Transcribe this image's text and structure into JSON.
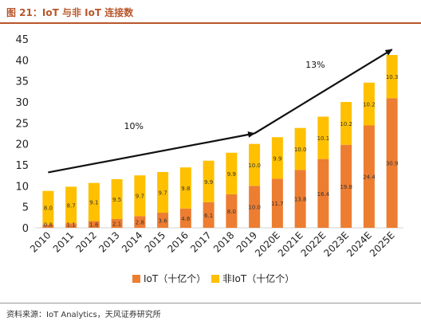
{
  "title": "图 21：IoT 与非 IoT 连接数",
  "source": "资料来源：IoT Analytics，天风证券研究所",
  "chart_data": {
    "type": "bar",
    "stacked": true,
    "categories": [
      "2010",
      "2011",
      "2012",
      "2013",
      "2014",
      "2015",
      "2016",
      "2017",
      "2018",
      "2019",
      "2020E",
      "2021E",
      "2022E",
      "2023E",
      "2024E",
      "2025E"
    ],
    "series": [
      {
        "name": "IoT（十亿个）",
        "color": "#ed7d31",
        "values": [
          0.8,
          1.1,
          1.6,
          2.1,
          2.8,
          3.6,
          4.6,
          6.1,
          8.0,
          10.0,
          11.7,
          13.8,
          16.4,
          19.8,
          24.4,
          30.9
        ],
        "labels": [
          "0.8",
          "1.1",
          "1.6",
          "2.1",
          "2.8",
          "3.6",
          "4.6",
          "6.1",
          "8.0",
          "10.0",
          "11.7",
          "13.8",
          "16.4",
          "19.8",
          "24.4",
          "30.9"
        ]
      },
      {
        "name": "非IoT（十亿个）",
        "color": "#ffc000",
        "values": [
          8.0,
          8.7,
          9.1,
          9.5,
          9.7,
          9.7,
          9.8,
          9.9,
          9.9,
          10.0,
          9.9,
          10.0,
          10.1,
          10.2,
          10.2,
          10.3
        ],
        "labels": [
          "8.0",
          "8.7",
          "9.1",
          "9.5",
          "9.7",
          "9.7",
          "9.8",
          "9.9",
          "9.9",
          "10.0",
          "9.9",
          "10.0",
          "10.1",
          "10.2",
          "10.2",
          "10.3"
        ]
      }
    ],
    "ylim": [
      0,
      45
    ],
    "yticks": [
      0,
      5,
      10,
      15,
      20,
      25,
      30,
      35,
      40,
      45
    ],
    "ytick_labels": [
      "0",
      "5",
      "10",
      "15",
      "20",
      "25",
      "30",
      "35",
      "40",
      "45"
    ],
    "grid": false,
    "legend": "bottom",
    "annotations": [
      {
        "text": "10%",
        "from": {
          "x": "2010",
          "y": 13.2
        },
        "to": {
          "x": "2019",
          "y": 22.5
        }
      },
      {
        "text": "13%",
        "from": {
          "x": "2019",
          "y": 22.5
        },
        "to": {
          "x": "2025E",
          "y": 42.5
        }
      }
    ]
  }
}
